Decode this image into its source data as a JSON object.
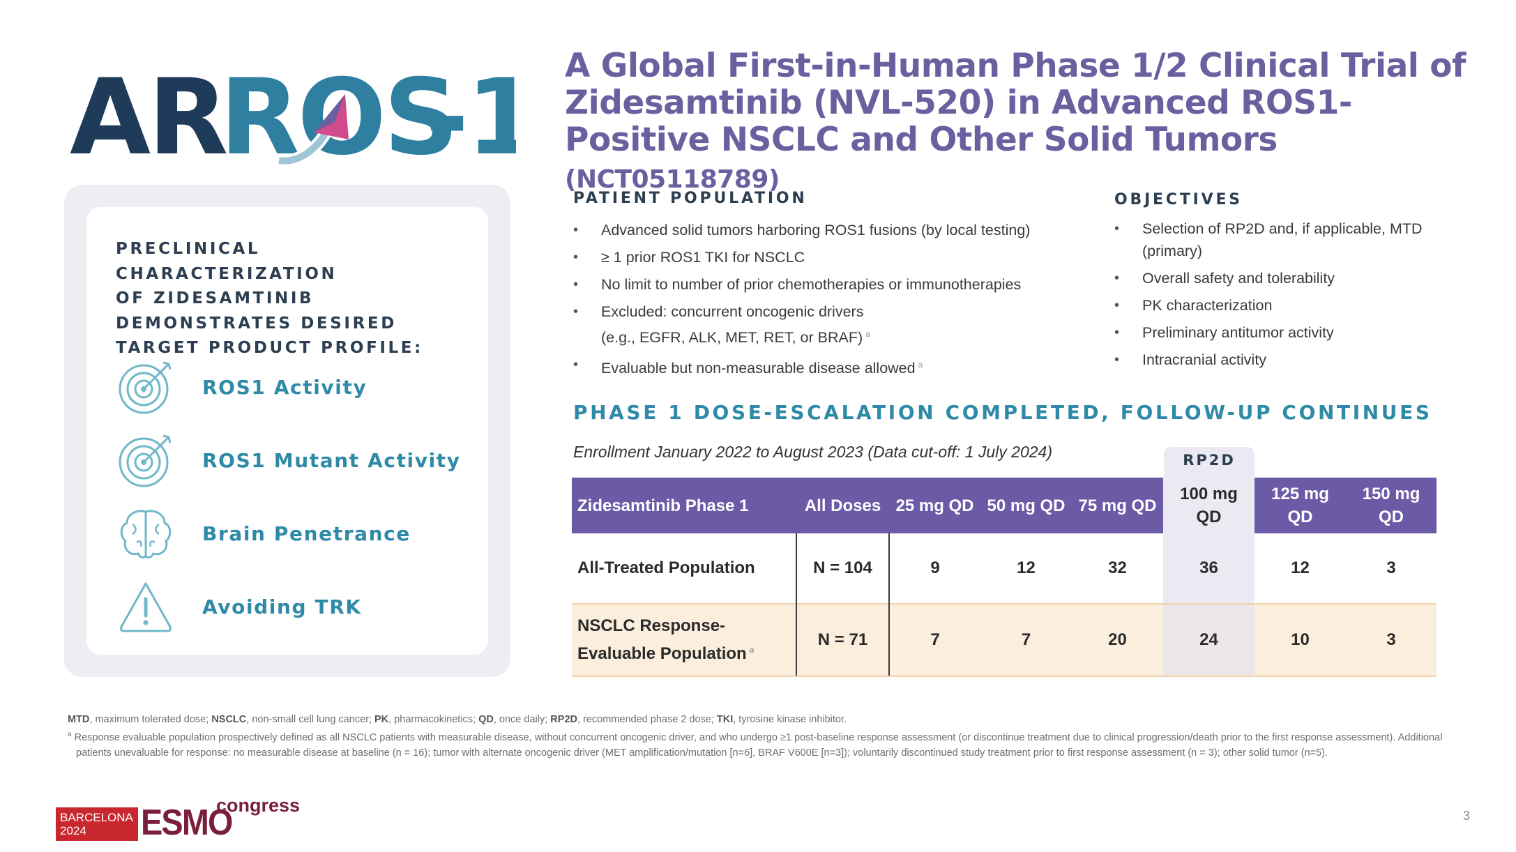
{
  "logo": {
    "text_ar": "AR",
    "text_ros": "ROS",
    "text_tail": "-1",
    "colors": {
      "dark": "#1f3b5a",
      "teal": "#2e7fa0",
      "accent": "#d14a8b"
    }
  },
  "title": {
    "main": "A Global First-in-Human Phase 1/2 Clinical Trial of Zidesamtinib (NVL-520) in Advanced ROS1-Positive NSCLC and Other Solid Tumors",
    "nct": "(NCT05118789)"
  },
  "panel": {
    "heading_lines": [
      "PRECLINICAL CHARACTERIZATION",
      "OF ZIDESAMTINIB",
      "DEMONSTRATES DESIRED",
      "TARGET PRODUCT PROFILE:"
    ],
    "features": [
      {
        "icon": "target-icon",
        "label": "ROS1 Activity"
      },
      {
        "icon": "target-icon",
        "label": "ROS1 Mutant Activity"
      },
      {
        "icon": "brain-icon",
        "label": "Brain Penetrance"
      },
      {
        "icon": "warning-icon",
        "label": "Avoiding TRK"
      }
    ]
  },
  "population": {
    "heading": "PATIENT POPULATION",
    "items": [
      {
        "text": "Advanced solid tumors harboring ROS1 fusions (by local testing)",
        "sup": ""
      },
      {
        "text": "≥ 1 prior ROS1 TKI for NSCLC",
        "sup": ""
      },
      {
        "text": "No limit to number of prior chemotherapies or immunotherapies",
        "sup": ""
      },
      {
        "text": "Excluded: concurrent oncogenic drivers",
        "text2": "(e.g., EGFR, ALK, MET, RET, or BRAF)",
        "sup": "a"
      },
      {
        "text": "Evaluable but non-measurable disease allowed",
        "sup": "a"
      }
    ]
  },
  "objectives": {
    "heading": "OBJECTIVES",
    "items": [
      "Selection of RP2D and, if applicable, MTD (primary)",
      "Overall safety and tolerability",
      "PK characterization",
      "Preliminary antitumor activity",
      "Intracranial activity"
    ]
  },
  "phase_heading": "PHASE 1 DOSE-ESCALATION COMPLETED, FOLLOW-UP CONTINUES",
  "enrollment": "Enrollment January 2022 to August 2023 (Data cut-off: 1 July 2024)",
  "rp2d_label": "RP2D",
  "table": {
    "headers": [
      "Zidesamtinib Phase 1",
      "All Doses",
      "25 mg QD",
      "50 mg QD",
      "75 mg QD",
      "100 mg QD",
      "125 mg QD",
      "150 mg QD"
    ],
    "rows": [
      {
        "label": "All-Treated Population",
        "sup": "",
        "values": [
          "N = 104",
          "9",
          "12",
          "32",
          "36",
          "12",
          "3"
        ]
      },
      {
        "label": "NSCLC Response-Evaluable Population",
        "sup": "a",
        "values": [
          "N = 71",
          "7",
          "7",
          "20",
          "24",
          "10",
          "3"
        ]
      }
    ]
  },
  "footnotes": {
    "abbreviations": [
      {
        "term": "MTD",
        "def": ", maximum tolerated dose; "
      },
      {
        "term": "NSCLC",
        "def": ", non-small cell lung cancer; "
      },
      {
        "term": "PK",
        "def": ", pharmacokinetics; "
      },
      {
        "term": "QD",
        "def": ", once daily; "
      },
      {
        "term": "RP2D",
        "def": ", recommended phase 2 dose; "
      },
      {
        "term": "TKI",
        "def": ", tyrosine kinase inhibitor."
      }
    ],
    "note_a": "Response evaluable population prospectively defined as all NSCLC patients with measurable disease, without concurrent oncogenic driver, and who undergo ≥1 post-baseline response assessment (or discontinue treatment due to clinical progression/death prior to the first response assessment). Additional patients unevaluable for response: no measurable disease at baseline (n = 16); tumor with alternate oncogenic driver (MET amplification/mutation [n=6], BRAF V600E [n=3]); voluntarily discontinued study treatment prior to first response assessment (n = 3); other solid tumor (n=5)."
  },
  "esmo": {
    "city": "BARCELONA",
    "year": "2024",
    "word": "ESMO",
    "congress": "congress"
  },
  "page_number": "3"
}
